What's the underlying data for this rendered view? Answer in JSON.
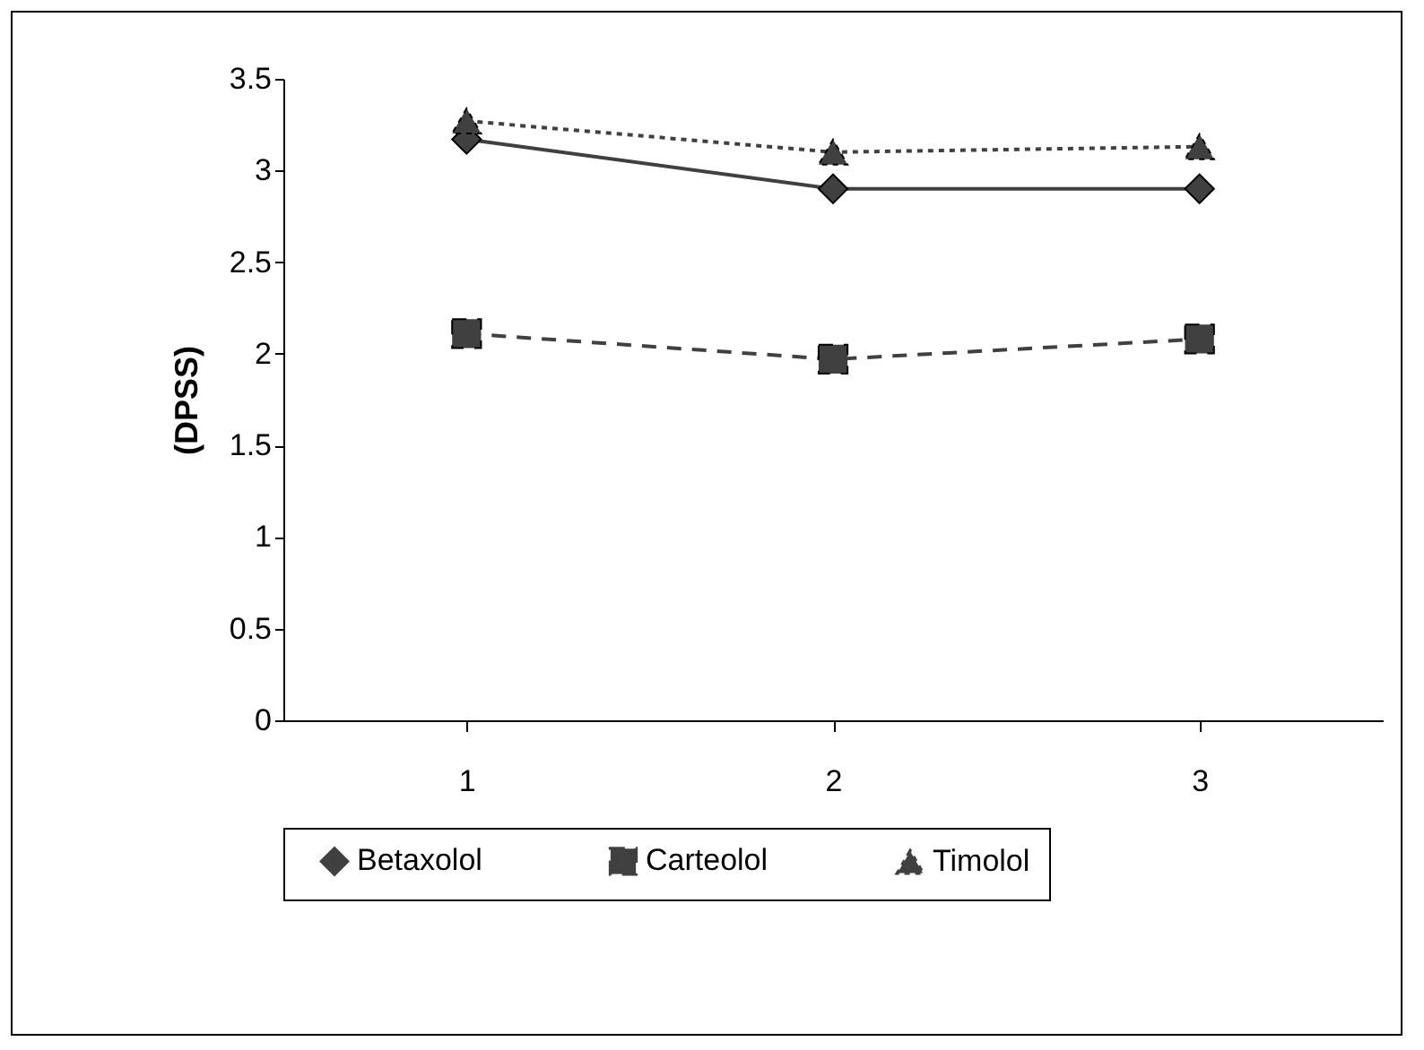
{
  "chart_data": {
    "type": "line",
    "ylabel": "(DPSS)",
    "categories": [
      "1",
      "2",
      "3"
    ],
    "series": [
      {
        "name": "Betaxolol",
        "color": "#404040",
        "values": [
          3.17,
          2.9,
          2.9
        ],
        "marker": "diamond",
        "line_style": "solid"
      },
      {
        "name": "Carteolol",
        "color": "#404040",
        "values": [
          2.11,
          1.97,
          2.08
        ],
        "marker": "square",
        "line_style": "dashed"
      },
      {
        "name": "Timolol",
        "color": "#404040",
        "values": [
          3.27,
          3.1,
          3.13
        ],
        "marker": "triangle",
        "line_style": "dotted"
      }
    ],
    "ylim": [
      0,
      3.5
    ],
    "yticks": [
      0,
      0.5,
      1,
      1.5,
      2,
      2.5,
      3,
      3.5
    ],
    "grid": false,
    "legend": "bottom"
  }
}
